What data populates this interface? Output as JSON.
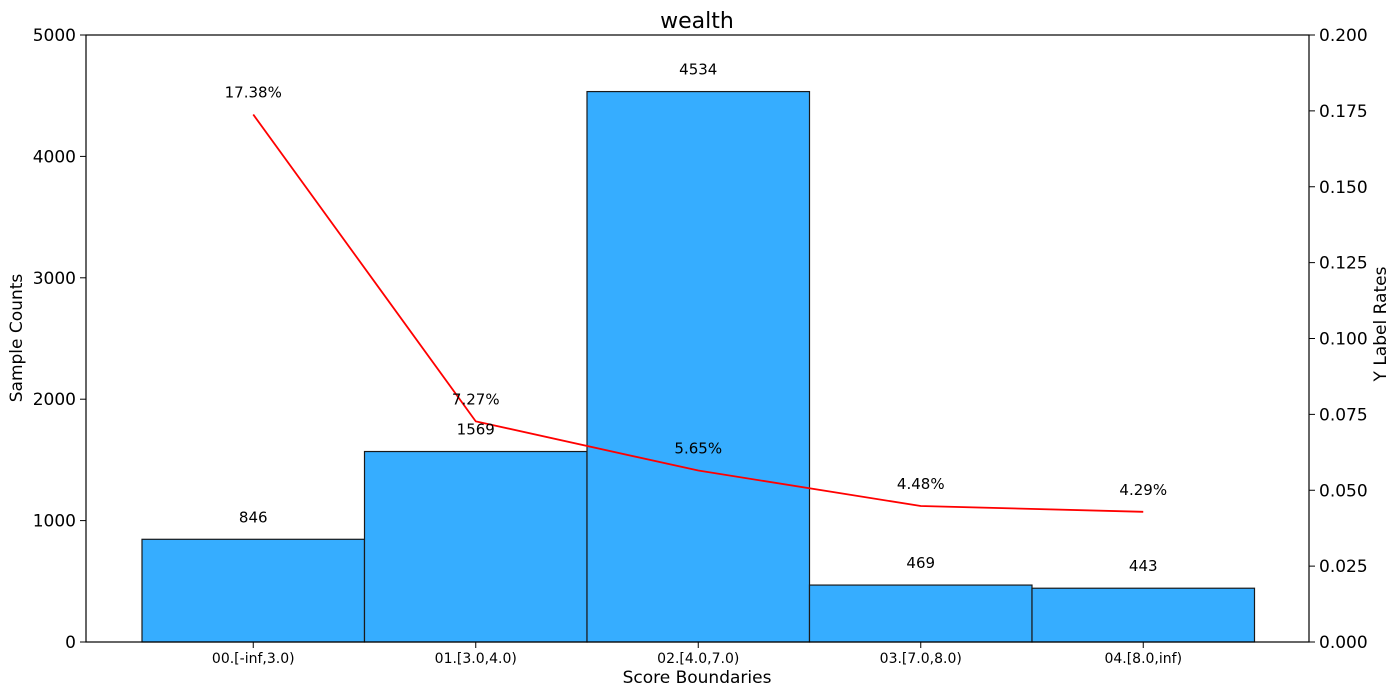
{
  "chart_data": {
    "type": "bar",
    "title": "wealth",
    "xlabel": "Score Boundaries",
    "ylabel": "Sample Counts",
    "y2label": "Y Label Rates",
    "categories": [
      "00.[-inf,3.0)",
      "01.[3.0,4.0)",
      "02.[4.0,7.0)",
      "03.[7.0,8.0)",
      "04.[8.0,inf)"
    ],
    "series": [
      {
        "values": [
          846,
          1569,
          4534,
          469,
          443
        ],
        "axis": "left",
        "kind": "bar",
        "color": "#36adff"
      },
      {
        "values": [
          0.1738,
          0.0727,
          0.0565,
          0.0448,
          0.0429
        ],
        "axis": "right",
        "kind": "line",
        "color": "#ff0000"
      }
    ],
    "bar_labels": [
      "846",
      "1569",
      "4534",
      "469",
      "443"
    ],
    "rate_labels": [
      "17.38%",
      "7.27%",
      "5.65%",
      "4.48%",
      "4.29%"
    ],
    "ylim": [
      0,
      5000
    ],
    "y2lim": [
      0,
      0.2
    ],
    "yticks": [
      "0",
      "1000",
      "2000",
      "3000",
      "4000",
      "5000"
    ],
    "y2ticks": [
      "0.000",
      "0.025",
      "0.050",
      "0.075",
      "0.100",
      "0.125",
      "0.150",
      "0.175",
      "0.200"
    ],
    "grid": false
  }
}
